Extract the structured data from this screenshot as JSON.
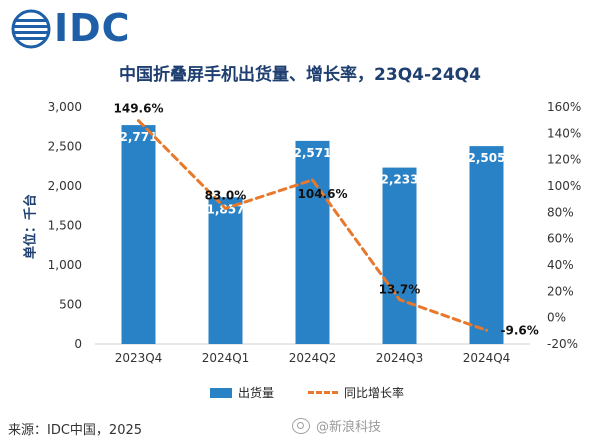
{
  "brand": {
    "logo_text": "IDC"
  },
  "title": "中国折叠屏手机出货量、增长率，23Q4-24Q4",
  "unit_label": "单位：千台",
  "legend": {
    "bar_label": "出货量",
    "line_label": "同比增长率"
  },
  "source": "来源：IDC中国，2025",
  "watermark": "@新浪科技",
  "colors": {
    "bar": "#2a82c6",
    "line": "#e8782b",
    "title": "#1e3f70",
    "logo": "#1f5fa8"
  },
  "chart_data": {
    "type": "bar",
    "categories": [
      "2023Q4",
      "2024Q1",
      "2024Q2",
      "2024Q3",
      "2024Q4"
    ],
    "series": [
      {
        "name": "出货量",
        "type": "bar",
        "axis": "left",
        "values": [
          2771,
          1857,
          2571,
          2233,
          2505
        ],
        "labels": [
          "2,771",
          "1,857",
          "2,571",
          "2,233",
          "2,505"
        ]
      },
      {
        "name": "同比增长率",
        "type": "line",
        "style": "dashed",
        "axis": "right",
        "values": [
          149.6,
          83.0,
          104.6,
          13.7,
          -9.6
        ],
        "labels": [
          "149.6%",
          "83.0%",
          "104.6%",
          "13.7%",
          "-9.6%"
        ]
      }
    ],
    "ylim_left": [
      0,
      3000
    ],
    "yticks_left": [
      "0",
      "500",
      "1,000",
      "1,500",
      "2,000",
      "2,500",
      "3,000"
    ],
    "ylim_right": [
      -20,
      160
    ],
    "yticks_right": [
      "-20%",
      "0%",
      "20%",
      "40%",
      "60%",
      "80%",
      "100%",
      "120%",
      "140%",
      "160%"
    ],
    "ylabel": "单位：千台",
    "grid": false,
    "legend_position": "bottom"
  }
}
